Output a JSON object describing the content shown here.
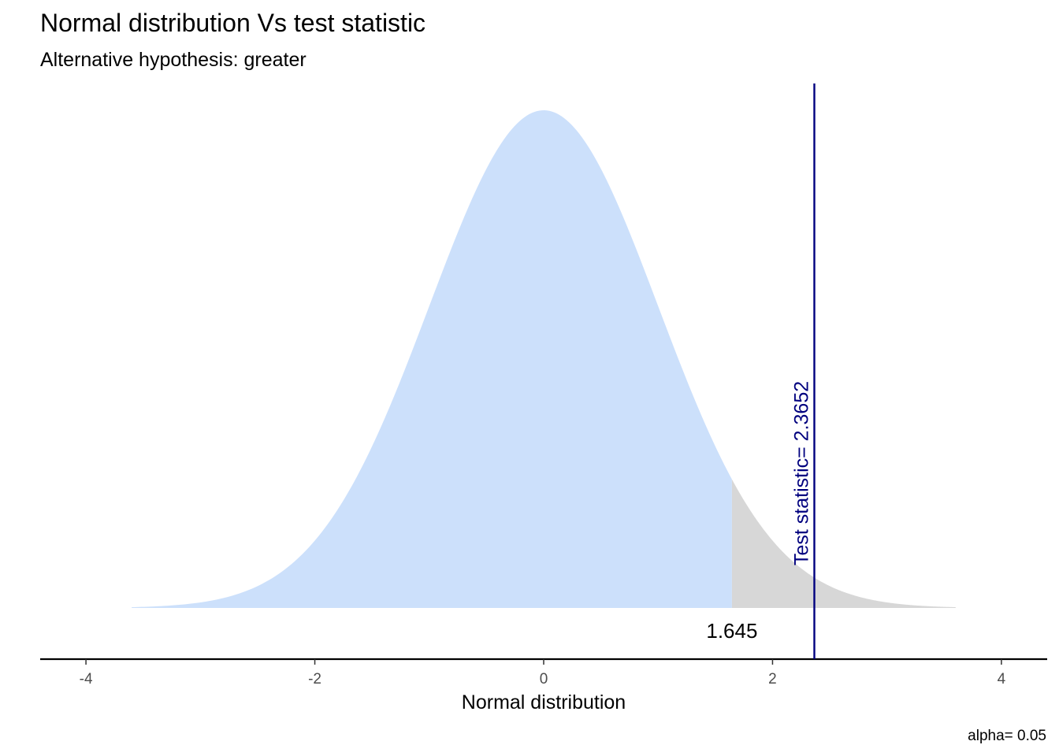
{
  "chart_data": {
    "type": "area",
    "title": "Normal distribution Vs test statistic",
    "subtitle": "Alternative hypothesis: greater",
    "xlabel": "Normal distribution",
    "ylabel": "",
    "xlim": [
      -4.4,
      4.4
    ],
    "curve_range": [
      -3.6,
      3.6
    ],
    "ylim": [
      0,
      0.4
    ],
    "x_ticks": [
      -4,
      -2,
      0,
      2,
      4
    ],
    "x_tick_labels": [
      "-4",
      "-2",
      "0",
      "2",
      "4"
    ],
    "grid": false,
    "distribution": "standard normal",
    "critical_value": 1.645,
    "critical_value_label": "1.645",
    "test_statistic": 2.3652,
    "test_statistic_label": "Test statistic= 2.3652",
    "caption": "alpha= 0.05",
    "alpha": 0.05,
    "alternative": "greater",
    "colors": {
      "acceptance_region": "#cce0fb",
      "rejection_region": "#d7d7d7",
      "test_statistic_line": "#00007f",
      "axis": "#000000"
    }
  }
}
